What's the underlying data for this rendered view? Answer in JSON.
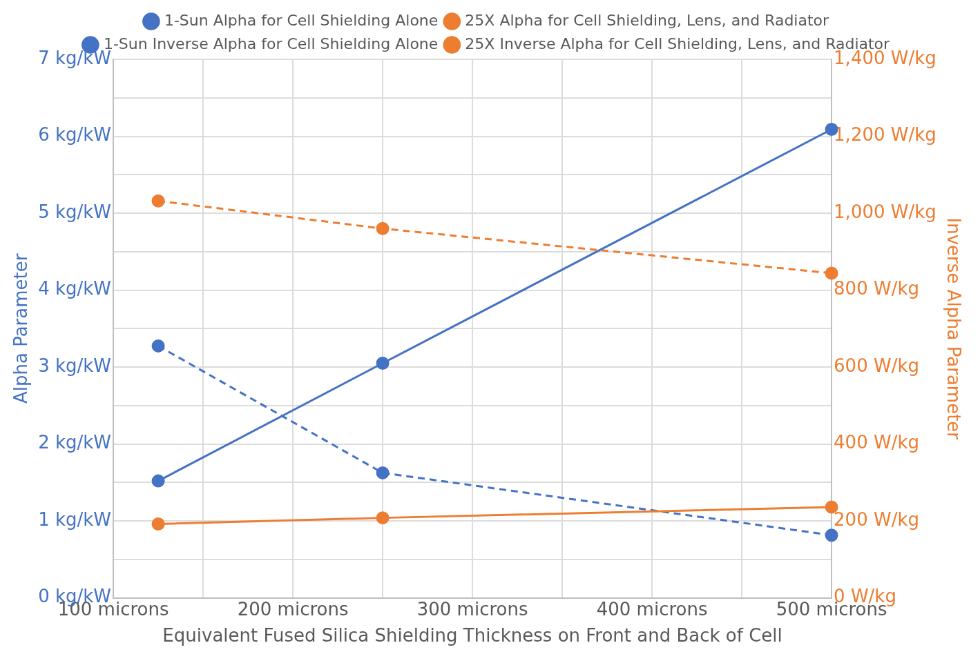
{
  "chart_data": {
    "type": "line",
    "xlabel": "Equivalent Fused Silica Shielding Thickness on Front and Back of Cell",
    "ylabel": "Alpha Parameter",
    "y2label": "Inverse Alpha Parameter",
    "x": [
      125,
      250,
      500
    ],
    "series": [
      {
        "name": "1-Sun Alpha for Cell Shielding Alone",
        "color": "#4472c4",
        "values": [
          1.52,
          3.05,
          6.09
        ],
        "line_style": "solid"
      },
      {
        "name": "25X Alpha for Cell Shielding, Lens, and Radiator",
        "color": "#ed7d31",
        "values": [
          0.96,
          1.04,
          1.18
        ],
        "line_style": "solid"
      },
      {
        "name": "1-Sun Inverse Alpha for Cell Shielding Alone",
        "color": "#4472c4",
        "values": [
          655,
          325,
          163
        ],
        "line_style": "dashed",
        "axis": "y2"
      },
      {
        "name": "25X Inverse Alpha for Cell Shielding, Lens, and Radiator",
        "color": "#ed7d31",
        "values": [
          1032,
          960,
          844
        ],
        "line_style": "dashed",
        "axis": "y2"
      }
    ],
    "xlim": [
      100,
      500
    ],
    "xticks": [
      {
        "value": 100,
        "label": "100 microns"
      },
      {
        "value": 150,
        "label": null
      },
      {
        "value": 200,
        "label": "200 microns"
      },
      {
        "value": 250,
        "label": null
      },
      {
        "value": 300,
        "label": "300 microns"
      },
      {
        "value": 350,
        "label": null
      },
      {
        "value": 400,
        "label": "400 microns"
      },
      {
        "value": 450,
        "label": null
      },
      {
        "value": 500,
        "label": "500 microns"
      }
    ],
    "ylim": [
      0,
      7
    ],
    "yticks": [
      {
        "value": 0,
        "label": "0 kg/kW"
      },
      {
        "value": 0.5,
        "label": null
      },
      {
        "value": 1,
        "label": "1 kg/kW"
      },
      {
        "value": 1.5,
        "label": null
      },
      {
        "value": 2,
        "label": "2 kg/kW"
      },
      {
        "value": 2.5,
        "label": null
      },
      {
        "value": 3,
        "label": "3 kg/kW"
      },
      {
        "value": 3.5,
        "label": null
      },
      {
        "value": 4,
        "label": "4 kg/kW"
      },
      {
        "value": 4.5,
        "label": null
      },
      {
        "value": 5,
        "label": "5 kg/kW"
      },
      {
        "value": 5.5,
        "label": null
      },
      {
        "value": 6,
        "label": "6 kg/kW"
      },
      {
        "value": 6.5,
        "label": null
      },
      {
        "value": 7,
        "label": "7 kg/kW"
      }
    ],
    "y2lim": [
      0,
      1400
    ],
    "y2ticks": [
      {
        "value": 0,
        "label": "0 W/kg"
      },
      {
        "value": 200,
        "label": "200 W/kg"
      },
      {
        "value": 400,
        "label": "400 W/kg"
      },
      {
        "value": 600,
        "label": "600 W/kg"
      },
      {
        "value": 800,
        "label": "800 W/kg"
      },
      {
        "value": 1000,
        "label": "1,000 W/kg"
      },
      {
        "value": 1200,
        "label": "1,200 W/kg"
      },
      {
        "value": 1400,
        "label": "1,400 W/kg"
      }
    ],
    "grid": true,
    "legend": "top",
    "marker": "circle"
  }
}
